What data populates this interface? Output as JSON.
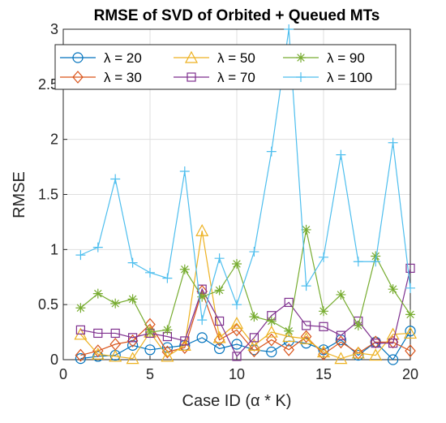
{
  "chart_data": {
    "type": "line",
    "title": "RMSE of SVD of Orbited + Queued MTs",
    "xlabel": "Case ID (α * K)",
    "ylabel": "RMSE",
    "xlim": [
      0,
      20
    ],
    "ylim": [
      0,
      3
    ],
    "xticks": [
      "0",
      "5",
      "10",
      "15",
      "20"
    ],
    "yticks": [
      "0",
      "0.5",
      "1",
      "1.5",
      "2",
      "2.5",
      "3"
    ],
    "grid": true,
    "legend_position": "top",
    "x": [
      1,
      2,
      3,
      4,
      5,
      6,
      7,
      8,
      9,
      10,
      11,
      12,
      13,
      14,
      15,
      16,
      17,
      18,
      19,
      20
    ],
    "series": [
      {
        "name": "λ = 20",
        "color": "#0072bd",
        "marker": "circle",
        "values": [
          0.01,
          0.03,
          0.04,
          0.13,
          0.09,
          0.11,
          0.13,
          0.2,
          0.1,
          0.14,
          0.09,
          0.07,
          0.17,
          0.15,
          0.09,
          0.18,
          0.04,
          0.16,
          0.0,
          0.26
        ]
      },
      {
        "name": "λ = 30",
        "color": "#d95319",
        "marker": "diamond",
        "values": [
          0.04,
          0.08,
          0.14,
          0.17,
          0.32,
          0.07,
          0.11,
          0.62,
          0.18,
          0.27,
          0.08,
          0.18,
          0.09,
          0.21,
          0.05,
          0.16,
          0.06,
          0.16,
          0.16,
          0.08
        ]
      },
      {
        "name": "λ = 50",
        "color": "#edb120",
        "marker": "triangle",
        "values": [
          0.23,
          0.05,
          0.03,
          0.01,
          0.25,
          0.03,
          0.13,
          1.17,
          0.2,
          0.33,
          0.13,
          0.25,
          0.21,
          0.19,
          0.07,
          0.01,
          0.06,
          0.04,
          0.23,
          0.24
        ]
      },
      {
        "name": "λ = 70",
        "color": "#7e2f8e",
        "marker": "square",
        "values": [
          0.27,
          0.24,
          0.24,
          0.2,
          0.24,
          0.21,
          0.17,
          0.64,
          0.35,
          0.03,
          0.2,
          0.4,
          0.52,
          0.31,
          0.3,
          0.22,
          0.35,
          0.15,
          0.15,
          0.83
        ]
      },
      {
        "name": "λ = 90",
        "color": "#77ac30",
        "marker": "star",
        "values": [
          0.47,
          0.6,
          0.51,
          0.55,
          0.25,
          0.27,
          0.82,
          0.57,
          0.63,
          0.87,
          0.39,
          0.35,
          0.26,
          1.18,
          0.44,
          0.59,
          0.31,
          0.94,
          0.64,
          0.41
        ]
      },
      {
        "name": "λ = 100",
        "color": "#4dbeee",
        "marker": "plus",
        "values": [
          0.95,
          1.02,
          1.64,
          0.88,
          0.79,
          0.74,
          1.71,
          0.36,
          0.92,
          0.5,
          0.98,
          1.89,
          3.0,
          0.67,
          0.93,
          1.86,
          0.89,
          0.89,
          1.97,
          0.65
        ]
      }
    ]
  }
}
